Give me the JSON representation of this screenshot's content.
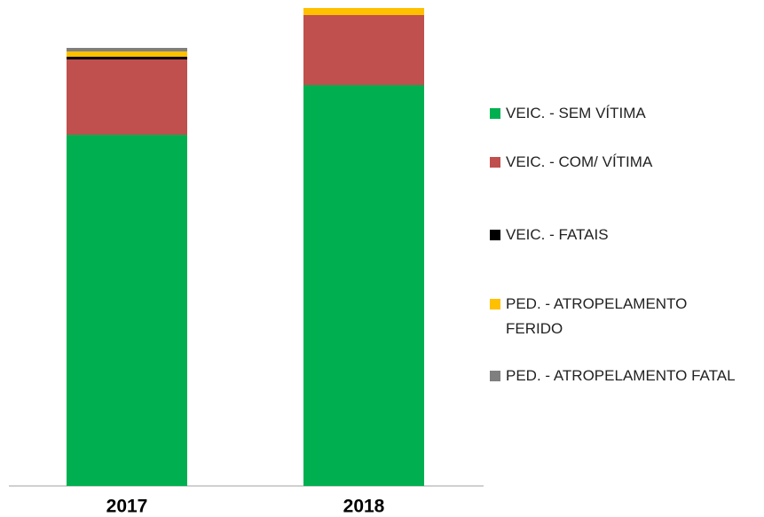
{
  "chart_data": {
    "type": "stacked-bar",
    "categories": [
      "2017",
      "2018"
    ],
    "series": [
      {
        "name": "VEIC. - SEM VÍTIMA",
        "color": "#00b050",
        "values": [
          396,
          452
        ]
      },
      {
        "name": "VEIC. - COM/ VÍTIMA",
        "color": "#c0504d",
        "values": [
          85,
          79
        ]
      },
      {
        "name": "VEIC. - FATAIS",
        "color": "#000000",
        "values": [
          3,
          0
        ]
      },
      {
        "name": "PED. - ATROPELAMENTO FERIDO",
        "color": "#ffc000",
        "values": [
          6,
          8
        ]
      },
      {
        "name": "PED. - ATROPELAMENTO FATAL",
        "color": "#7f7f7f",
        "values": [
          4,
          0
        ]
      }
    ],
    "ylim": [
      0,
      540
    ],
    "legend": "right"
  }
}
